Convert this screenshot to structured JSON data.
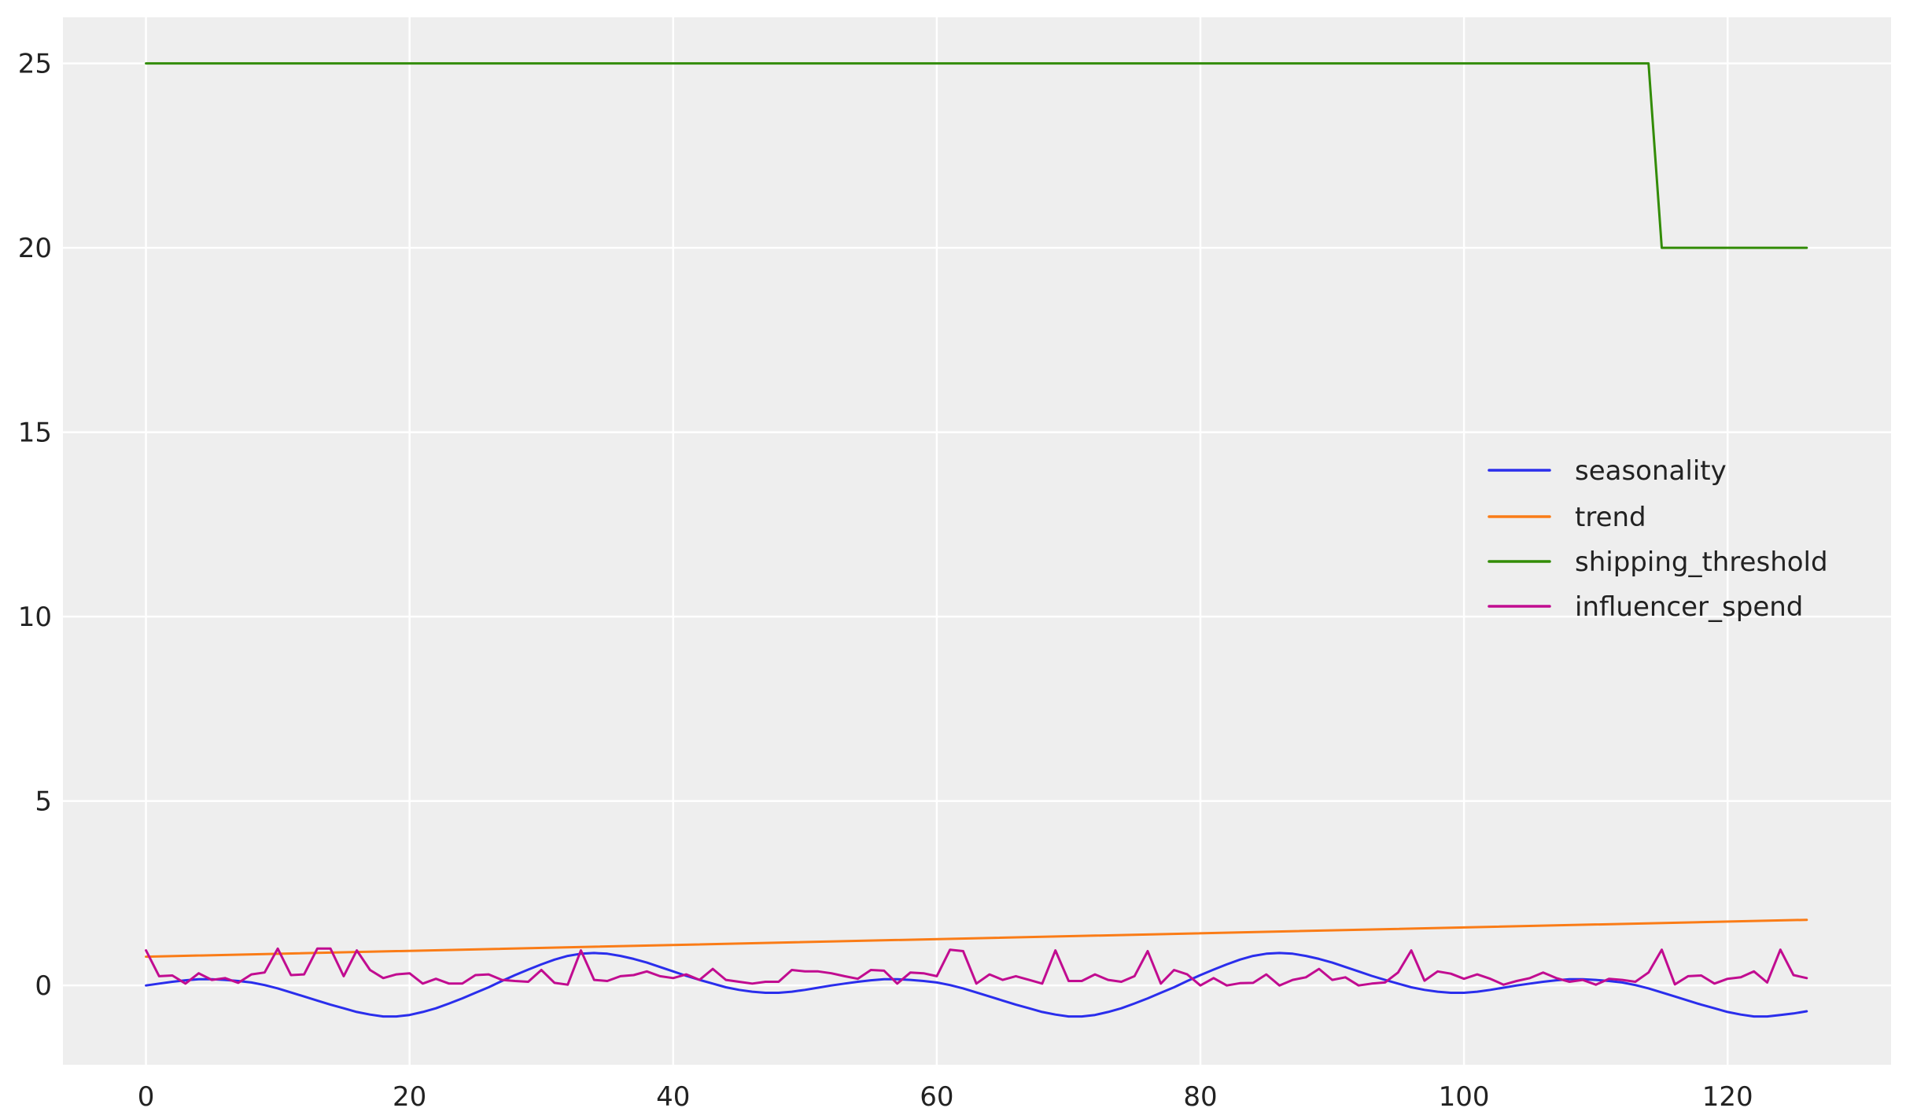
{
  "chart_data": {
    "type": "line",
    "title": "",
    "xlabel": "",
    "ylabel": "",
    "xlim": [
      -6.3,
      132.4
    ],
    "ylim": [
      -2.15,
      26.25
    ],
    "xticks": [
      0,
      20,
      40,
      60,
      80,
      100,
      120
    ],
    "yticks": [
      0,
      5,
      10,
      15,
      20,
      25
    ],
    "xtick_labels": [
      "0",
      "20",
      "40",
      "60",
      "80",
      "100",
      "120"
    ],
    "ytick_labels": [
      "0",
      "5",
      "10",
      "15",
      "20",
      "25"
    ],
    "grid": true,
    "background": "#eeeeee",
    "legend_placement": "center-right",
    "series": [
      {
        "name": "seasonality",
        "color": "#2a2eec",
        "x_start": 0,
        "values": [
          0,
          0.05,
          0.1,
          0.14,
          0.17,
          0.17,
          0.15,
          0.12,
          0.08,
          0.01,
          -0.08,
          -0.19,
          -0.3,
          -0.41,
          -0.52,
          -0.62,
          -0.72,
          -0.79,
          -0.84,
          -0.84,
          -0.8,
          -0.72,
          -0.62,
          -0.49,
          -0.35,
          -0.2,
          -0.05,
          0.12,
          0.28,
          0.43,
          0.57,
          0.7,
          0.8,
          0.86,
          0.88,
          0.86,
          0.8,
          0.72,
          0.62,
          0.5,
          0.38,
          0.26,
          0.15,
          0.05,
          -0.05,
          -0.12,
          -0.17,
          -0.2,
          -0.2,
          -0.17,
          -0.12,
          -0.06,
          0,
          0.05,
          0.1,
          0.14,
          0.17,
          0.17,
          0.15,
          0.12,
          0.08,
          0.01,
          -0.08,
          -0.19,
          -0.3,
          -0.41,
          -0.52,
          -0.62,
          -0.72,
          -0.79,
          -0.84,
          -0.84,
          -0.8,
          -0.72,
          -0.62,
          -0.49,
          -0.35,
          -0.2,
          -0.05,
          0.12,
          0.28,
          0.43,
          0.57,
          0.7,
          0.8,
          0.86,
          0.88,
          0.86,
          0.8,
          0.72,
          0.62,
          0.5,
          0.38,
          0.26,
          0.15,
          0.05,
          -0.05,
          -0.12,
          -0.17,
          -0.2,
          -0.2,
          -0.17,
          -0.12,
          -0.06,
          0,
          0.05,
          0.1,
          0.14,
          0.17,
          0.17,
          0.15,
          0.12,
          0.08,
          0.01,
          -0.08,
          -0.19,
          -0.3,
          -0.41,
          -0.52,
          -0.62,
          -0.72,
          -0.79,
          -0.84,
          -0.84,
          -0.8,
          -0.76,
          -0.7
        ]
      },
      {
        "name": "trend",
        "color": "#fa7c17",
        "x": [
          0,
          126
        ],
        "y": [
          0.78,
          1.78
        ]
      },
      {
        "name": "shipping_threshold",
        "color": "#328c06",
        "x": [
          0,
          114,
          115,
          126
        ],
        "y": [
          25,
          25,
          20,
          20
        ]
      },
      {
        "name": "influencer_spend",
        "color": "#c10c90",
        "x_start": 0,
        "values": [
          0.95,
          0.25,
          0.27,
          0.05,
          0.33,
          0.15,
          0.2,
          0.07,
          0.3,
          0.35,
          1.0,
          0.28,
          0.3,
          1.0,
          1.0,
          0.25,
          0.95,
          0.42,
          0.2,
          0.3,
          0.33,
          0.05,
          0.18,
          0.05,
          0.05,
          0.28,
          0.3,
          0.15,
          0.12,
          0.1,
          0.42,
          0.07,
          0.02,
          0.95,
          0.15,
          0.12,
          0.25,
          0.28,
          0.38,
          0.25,
          0.2,
          0.3,
          0.15,
          0.45,
          0.15,
          0.1,
          0.05,
          0.1,
          0.1,
          0.42,
          0.38,
          0.38,
          0.33,
          0.25,
          0.18,
          0.42,
          0.4,
          0.05,
          0.35,
          0.33,
          0.25,
          0.97,
          0.93,
          0.05,
          0.3,
          0.15,
          0.25,
          0.15,
          0.05,
          0.95,
          0.12,
          0.12,
          0.3,
          0.15,
          0.1,
          0.25,
          0.93,
          0.05,
          0.42,
          0.3,
          0.0,
          0.2,
          0.0,
          0.06,
          0.07,
          0.3,
          0.0,
          0.15,
          0.22,
          0.45,
          0.15,
          0.22,
          0.0,
          0.05,
          0.08,
          0.35,
          0.95,
          0.13,
          0.38,
          0.32,
          0.18,
          0.3,
          0.18,
          0.02,
          0.12,
          0.2,
          0.35,
          0.2,
          0.1,
          0.15,
          0.02,
          0.18,
          0.15,
          0.1,
          0.35,
          0.97,
          0.03,
          0.25,
          0.27,
          0.05,
          0.18,
          0.22,
          0.38,
          0.08,
          0.97,
          0.28,
          0.2
        ]
      }
    ]
  }
}
